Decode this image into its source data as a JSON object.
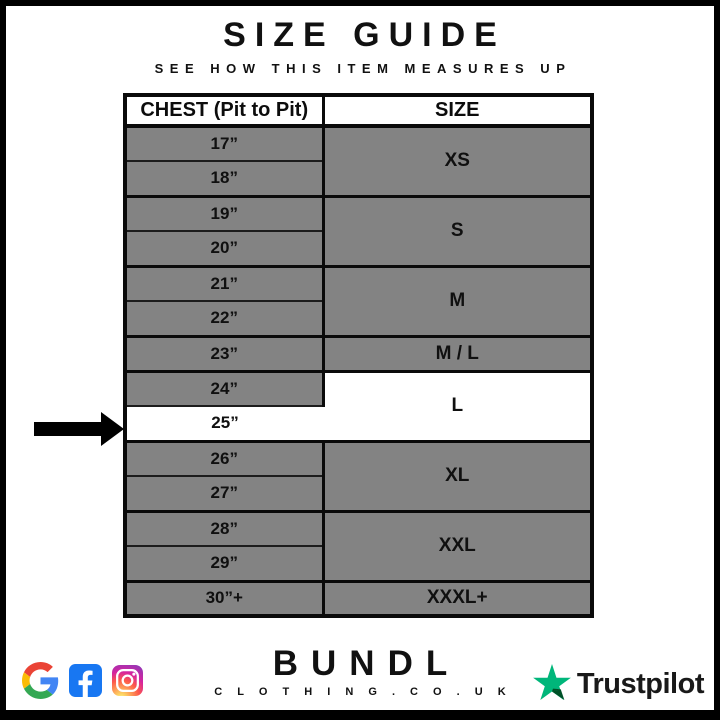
{
  "page": {
    "title": "SIZE GUIDE",
    "subtitle": "SEE HOW THIS ITEM MEASURES UP"
  },
  "table": {
    "columns": [
      "CHEST (Pit to Pit)",
      "SIZE"
    ],
    "groups": [
      {
        "size": "XS",
        "chests": [
          "17”",
          "18”"
        ]
      },
      {
        "size": "S",
        "chests": [
          "19”",
          "20”"
        ]
      },
      {
        "size": "M",
        "chests": [
          "21”",
          "22”"
        ]
      },
      {
        "size": "M / L",
        "chests": [
          "23”"
        ]
      },
      {
        "size": "L",
        "chests": [
          "24”",
          "25”"
        ],
        "highlight": true,
        "highlighted_chest": "25”"
      },
      {
        "size": "XL",
        "chests": [
          "26”",
          "27”"
        ]
      },
      {
        "size": "XXL",
        "chests": [
          "28”",
          "29”"
        ]
      },
      {
        "size": "XXXL+",
        "chests": [
          "30”+"
        ]
      }
    ],
    "highlight_annotation": "black arrow pointing at 25” / L row"
  },
  "chart_data": {
    "type": "table",
    "title": "SIZE GUIDE",
    "subtitle": "SEE HOW THIS ITEM MEASURES UP",
    "columns": [
      "CHEST (Pit to Pit)",
      "SIZE"
    ],
    "rows": [
      [
        "17”",
        "XS"
      ],
      [
        "18”",
        "XS"
      ],
      [
        "19”",
        "S"
      ],
      [
        "20”",
        "S"
      ],
      [
        "21”",
        "M"
      ],
      [
        "22”",
        "M"
      ],
      [
        "23”",
        "M / L"
      ],
      [
        "24”",
        "L"
      ],
      [
        "25”",
        "L"
      ],
      [
        "26”",
        "XL"
      ],
      [
        "27”",
        "XL"
      ],
      [
        "28”",
        "XXL"
      ],
      [
        "29”",
        "XXL"
      ],
      [
        "30”+",
        "XXXL+"
      ]
    ],
    "highlighted_row": [
      "25”",
      "L"
    ],
    "layout": {
      "cell_fill": "#838383",
      "highlight_fill": "#ffffff",
      "border": "#000000"
    }
  },
  "footer": {
    "brand_name": "BUNDL",
    "brand_domain": "C L O T H I N G . C O . U K",
    "icons": [
      "google-icon",
      "facebook-icon",
      "instagram-icon"
    ],
    "trustpilot_label": "Trustpilot"
  },
  "colors": {
    "cell_gray": "#838383",
    "highlight_white": "#ffffff",
    "border_black": "#000000",
    "trustpilot_green": "#00B67A",
    "trustpilot_dark_green": "#005128",
    "facebook_blue": "#1877F2"
  }
}
